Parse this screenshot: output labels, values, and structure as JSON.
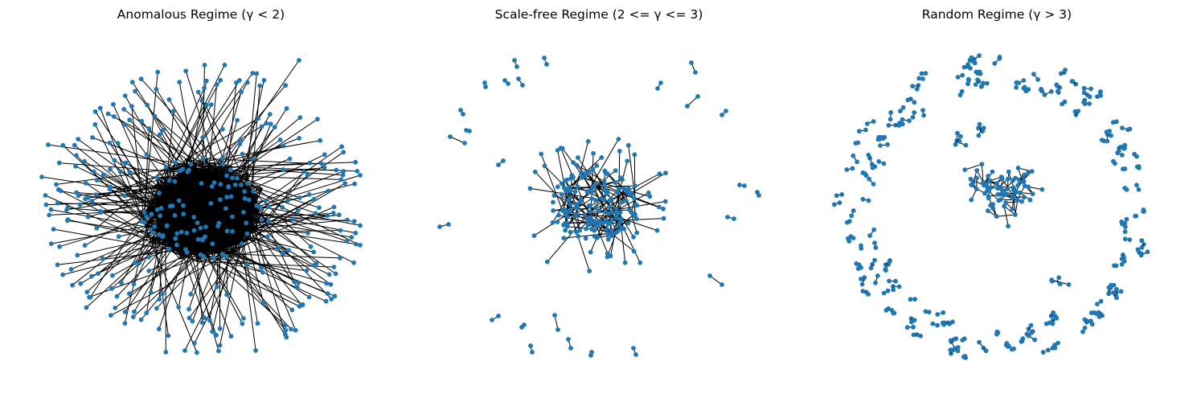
{
  "panels": [
    {
      "title": "Anomalous Regime (γ < 2)"
    },
    {
      "title": "Scale-free Regime (2 <= γ <= 3)"
    },
    {
      "title": "Random Regime (γ > 3)"
    }
  ],
  "colors": {
    "node": "#1f77b4",
    "edge": "#000000",
    "background": "#ffffff"
  }
}
